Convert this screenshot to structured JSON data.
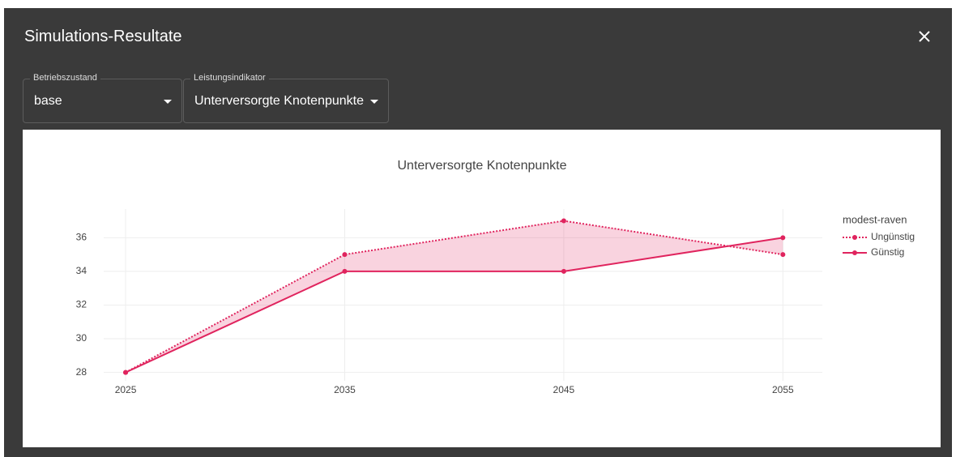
{
  "dialog": {
    "title": "Simulations-Resultate",
    "fields": [
      {
        "label": "Betriebszustand",
        "value": "base"
      },
      {
        "label": "Leistungsindikator",
        "value": "Unterversorgte Knotenpunkte"
      }
    ]
  },
  "chart_data": {
    "type": "line",
    "title": "Unterversorgte Knotenpunkte",
    "x": [
      2025,
      2035,
      2045,
      2055
    ],
    "legend_title": "modest-raven",
    "series": [
      {
        "name": "Ungünstig",
        "color": "#e0245e",
        "dash": "dot",
        "values": [
          28,
          35,
          37,
          35
        ]
      },
      {
        "name": "Günstig",
        "color": "#e0245e",
        "dash": "solid",
        "values": [
          28,
          34,
          34,
          36
        ]
      }
    ],
    "fill_between": true,
    "fill_color": "rgba(224,36,94,0.2)",
    "xlim": [
      2024,
      2056.8
    ],
    "xticks": [
      2025,
      2035,
      2045,
      2055
    ],
    "ylim": [
      27.5,
      37.7
    ],
    "yticks": [
      28,
      30,
      32,
      34,
      36
    ],
    "grid": true,
    "legend": "right"
  }
}
